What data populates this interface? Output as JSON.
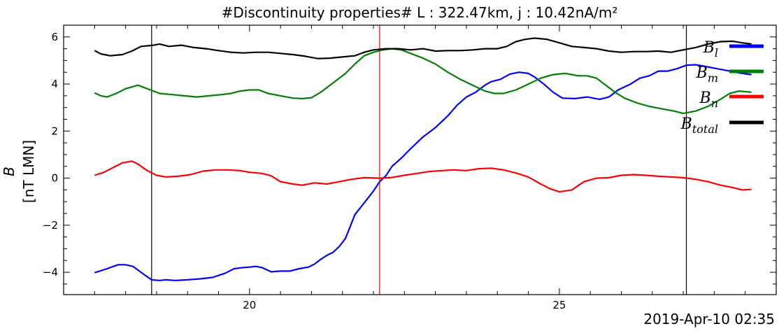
{
  "chart_data": {
    "type": "line",
    "title": "#Discontinuity properties# L : 322.47km, j : 10.42nA/m²",
    "ylabel_line1": "B",
    "ylabel_line2": "[nT LMN]",
    "xlabel": "",
    "date_label": "2019-Apr-10 02:35",
    "xlim": [
      17.0,
      28.5
    ],
    "ylim": [
      -4.95,
      6.5
    ],
    "x_ticks": [
      20,
      25
    ],
    "y_ticks": [
      -4,
      -2,
      0,
      2,
      4,
      6
    ],
    "y_tick_labels": [
      "−4",
      "−2",
      "0",
      "2",
      "4",
      "6"
    ],
    "grid": false,
    "legend_position": "right",
    "vertical_lines": [
      {
        "x": 18.42,
        "color": "#000000"
      },
      {
        "x": 22.1,
        "color": "#ff0000"
      },
      {
        "x": 27.05,
        "color": "#000000"
      }
    ],
    "series": [
      {
        "name": "B_l",
        "label_base": "B",
        "label_sub": "l",
        "color": "#0000ff",
        "points": [
          [
            17.5,
            -4.02
          ],
          [
            17.7,
            -3.85
          ],
          [
            17.88,
            -3.68
          ],
          [
            18.0,
            -3.68
          ],
          [
            18.12,
            -3.75
          ],
          [
            18.3,
            -4.1
          ],
          [
            18.42,
            -4.32
          ],
          [
            18.55,
            -4.35
          ],
          [
            18.65,
            -4.32
          ],
          [
            18.8,
            -4.35
          ],
          [
            19.0,
            -4.32
          ],
          [
            19.2,
            -4.28
          ],
          [
            19.4,
            -4.22
          ],
          [
            19.6,
            -4.05
          ],
          [
            19.75,
            -3.85
          ],
          [
            19.9,
            -3.8
          ],
          [
            20.0,
            -3.78
          ],
          [
            20.1,
            -3.75
          ],
          [
            20.2,
            -3.8
          ],
          [
            20.35,
            -3.98
          ],
          [
            20.5,
            -3.95
          ],
          [
            20.65,
            -3.95
          ],
          [
            20.8,
            -3.85
          ],
          [
            20.95,
            -3.78
          ],
          [
            21.05,
            -3.65
          ],
          [
            21.15,
            -3.45
          ],
          [
            21.25,
            -3.28
          ],
          [
            21.35,
            -3.15
          ],
          [
            21.45,
            -2.9
          ],
          [
            21.55,
            -2.55
          ],
          [
            21.7,
            -1.55
          ],
          [
            21.85,
            -1.05
          ],
          [
            22.0,
            -0.55
          ],
          [
            22.1,
            -0.15
          ],
          [
            22.2,
            0.1
          ],
          [
            22.3,
            0.5
          ],
          [
            22.45,
            0.85
          ],
          [
            22.6,
            1.25
          ],
          [
            22.8,
            1.75
          ],
          [
            23.0,
            2.15
          ],
          [
            23.2,
            2.65
          ],
          [
            23.35,
            3.1
          ],
          [
            23.5,
            3.45
          ],
          [
            23.65,
            3.65
          ],
          [
            23.8,
            3.95
          ],
          [
            23.9,
            4.1
          ],
          [
            24.05,
            4.2
          ],
          [
            24.2,
            4.42
          ],
          [
            24.35,
            4.5
          ],
          [
            24.5,
            4.45
          ],
          [
            24.6,
            4.3
          ],
          [
            24.75,
            4.0
          ],
          [
            24.9,
            3.65
          ],
          [
            25.05,
            3.4
          ],
          [
            25.25,
            3.38
          ],
          [
            25.45,
            3.45
          ],
          [
            25.65,
            3.35
          ],
          [
            25.8,
            3.45
          ],
          [
            25.95,
            3.75
          ],
          [
            26.15,
            4.0
          ],
          [
            26.3,
            4.25
          ],
          [
            26.45,
            4.35
          ],
          [
            26.6,
            4.55
          ],
          [
            26.75,
            4.55
          ],
          [
            26.9,
            4.65
          ],
          [
            27.05,
            4.8
          ],
          [
            27.2,
            4.82
          ],
          [
            27.35,
            4.75
          ],
          [
            27.55,
            4.65
          ],
          [
            27.75,
            4.55
          ],
          [
            27.95,
            4.45
          ],
          [
            28.1,
            4.4
          ]
        ]
      },
      {
        "name": "B_m",
        "label_base": "B",
        "label_sub": "m",
        "color": "#008000",
        "points": [
          [
            17.5,
            3.62
          ],
          [
            17.6,
            3.5
          ],
          [
            17.7,
            3.45
          ],
          [
            17.85,
            3.6
          ],
          [
            18.0,
            3.8
          ],
          [
            18.2,
            3.95
          ],
          [
            18.4,
            3.75
          ],
          [
            18.55,
            3.6
          ],
          [
            18.75,
            3.55
          ],
          [
            18.95,
            3.5
          ],
          [
            19.15,
            3.45
          ],
          [
            19.35,
            3.5
          ],
          [
            19.55,
            3.55
          ],
          [
            19.7,
            3.6
          ],
          [
            19.85,
            3.7
          ],
          [
            20.0,
            3.75
          ],
          [
            20.15,
            3.75
          ],
          [
            20.3,
            3.6
          ],
          [
            20.5,
            3.5
          ],
          [
            20.7,
            3.4
          ],
          [
            20.85,
            3.38
          ],
          [
            21.0,
            3.42
          ],
          [
            21.15,
            3.65
          ],
          [
            21.35,
            4.05
          ],
          [
            21.55,
            4.45
          ],
          [
            21.7,
            4.85
          ],
          [
            21.85,
            5.2
          ],
          [
            22.0,
            5.35
          ],
          [
            22.15,
            5.45
          ],
          [
            22.3,
            5.5
          ],
          [
            22.45,
            5.45
          ],
          [
            22.6,
            5.3
          ],
          [
            22.8,
            5.1
          ],
          [
            23.0,
            4.85
          ],
          [
            23.2,
            4.5
          ],
          [
            23.4,
            4.2
          ],
          [
            23.6,
            3.95
          ],
          [
            23.8,
            3.7
          ],
          [
            23.95,
            3.6
          ],
          [
            24.1,
            3.6
          ],
          [
            24.3,
            3.75
          ],
          [
            24.5,
            4.0
          ],
          [
            24.7,
            4.25
          ],
          [
            24.9,
            4.4
          ],
          [
            25.1,
            4.45
          ],
          [
            25.3,
            4.35
          ],
          [
            25.45,
            4.35
          ],
          [
            25.6,
            4.25
          ],
          [
            25.75,
            3.95
          ],
          [
            25.9,
            3.65
          ],
          [
            26.05,
            3.4
          ],
          [
            26.25,
            3.2
          ],
          [
            26.45,
            3.05
          ],
          [
            26.65,
            2.95
          ],
          [
            26.85,
            2.85
          ],
          [
            27.0,
            2.75
          ],
          [
            27.2,
            2.85
          ],
          [
            27.4,
            3.05
          ],
          [
            27.6,
            3.35
          ],
          [
            27.75,
            3.6
          ],
          [
            27.9,
            3.7
          ],
          [
            28.1,
            3.65
          ]
        ]
      },
      {
        "name": "B_n",
        "label_base": "B",
        "label_sub": "n",
        "color": "#ff0000",
        "points": [
          [
            17.5,
            0.12
          ],
          [
            17.65,
            0.25
          ],
          [
            17.8,
            0.45
          ],
          [
            17.95,
            0.65
          ],
          [
            18.1,
            0.72
          ],
          [
            18.2,
            0.6
          ],
          [
            18.35,
            0.32
          ],
          [
            18.5,
            0.12
          ],
          [
            18.65,
            0.05
          ],
          [
            18.85,
            0.08
          ],
          [
            19.05,
            0.15
          ],
          [
            19.25,
            0.3
          ],
          [
            19.45,
            0.35
          ],
          [
            19.65,
            0.35
          ],
          [
            19.85,
            0.32
          ],
          [
            20.0,
            0.25
          ],
          [
            20.2,
            0.2
          ],
          [
            20.35,
            0.1
          ],
          [
            20.5,
            -0.15
          ],
          [
            20.7,
            -0.25
          ],
          [
            20.85,
            -0.3
          ],
          [
            21.05,
            -0.2
          ],
          [
            21.25,
            -0.25
          ],
          [
            21.45,
            -0.15
          ],
          [
            21.65,
            -0.05
          ],
          [
            21.85,
            0.02
          ],
          [
            22.1,
            0.0
          ],
          [
            22.3,
            0.03
          ],
          [
            22.5,
            0.12
          ],
          [
            22.7,
            0.2
          ],
          [
            22.9,
            0.28
          ],
          [
            23.1,
            0.32
          ],
          [
            23.3,
            0.35
          ],
          [
            23.5,
            0.32
          ],
          [
            23.7,
            0.4
          ],
          [
            23.9,
            0.42
          ],
          [
            24.1,
            0.35
          ],
          [
            24.3,
            0.22
          ],
          [
            24.5,
            0.05
          ],
          [
            24.7,
            -0.25
          ],
          [
            24.85,
            -0.45
          ],
          [
            25.0,
            -0.58
          ],
          [
            25.2,
            -0.5
          ],
          [
            25.4,
            -0.15
          ],
          [
            25.6,
            0.0
          ],
          [
            25.8,
            0.02
          ],
          [
            26.0,
            0.12
          ],
          [
            26.2,
            0.15
          ],
          [
            26.4,
            0.12
          ],
          [
            26.6,
            0.08
          ],
          [
            26.8,
            0.05
          ],
          [
            27.0,
            0.02
          ],
          [
            27.2,
            -0.05
          ],
          [
            27.4,
            -0.15
          ],
          [
            27.6,
            -0.3
          ],
          [
            27.8,
            -0.4
          ],
          [
            27.95,
            -0.5
          ],
          [
            28.1,
            -0.48
          ]
        ]
      },
      {
        "name": "B_total",
        "label_base": "B",
        "label_sub": "total",
        "color": "#000000",
        "points": [
          [
            17.5,
            5.42
          ],
          [
            17.6,
            5.28
          ],
          [
            17.75,
            5.2
          ],
          [
            17.95,
            5.25
          ],
          [
            18.1,
            5.4
          ],
          [
            18.25,
            5.6
          ],
          [
            18.45,
            5.65
          ],
          [
            18.55,
            5.7
          ],
          [
            18.7,
            5.6
          ],
          [
            18.9,
            5.65
          ],
          [
            19.1,
            5.55
          ],
          [
            19.3,
            5.5
          ],
          [
            19.5,
            5.42
          ],
          [
            19.7,
            5.35
          ],
          [
            19.9,
            5.32
          ],
          [
            20.1,
            5.35
          ],
          [
            20.3,
            5.35
          ],
          [
            20.5,
            5.3
          ],
          [
            20.7,
            5.25
          ],
          [
            20.9,
            5.18
          ],
          [
            21.1,
            5.08
          ],
          [
            21.3,
            5.1
          ],
          [
            21.5,
            5.15
          ],
          [
            21.7,
            5.2
          ],
          [
            21.85,
            5.35
          ],
          [
            22.0,
            5.45
          ],
          [
            22.2,
            5.5
          ],
          [
            22.4,
            5.5
          ],
          [
            22.6,
            5.45
          ],
          [
            22.8,
            5.5
          ],
          [
            23.0,
            5.4
          ],
          [
            23.2,
            5.42
          ],
          [
            23.4,
            5.42
          ],
          [
            23.6,
            5.45
          ],
          [
            23.8,
            5.5
          ],
          [
            24.0,
            5.5
          ],
          [
            24.15,
            5.6
          ],
          [
            24.3,
            5.8
          ],
          [
            24.45,
            5.9
          ],
          [
            24.6,
            5.95
          ],
          [
            24.8,
            5.9
          ],
          [
            25.0,
            5.75
          ],
          [
            25.2,
            5.6
          ],
          [
            25.4,
            5.55
          ],
          [
            25.6,
            5.5
          ],
          [
            25.8,
            5.4
          ],
          [
            26.0,
            5.35
          ],
          [
            26.2,
            5.38
          ],
          [
            26.4,
            5.38
          ],
          [
            26.6,
            5.4
          ],
          [
            26.8,
            5.35
          ],
          [
            27.0,
            5.45
          ],
          [
            27.2,
            5.55
          ],
          [
            27.4,
            5.7
          ],
          [
            27.6,
            5.8
          ],
          [
            27.8,
            5.82
          ],
          [
            27.95,
            5.75
          ],
          [
            28.1,
            5.7
          ]
        ]
      }
    ]
  }
}
